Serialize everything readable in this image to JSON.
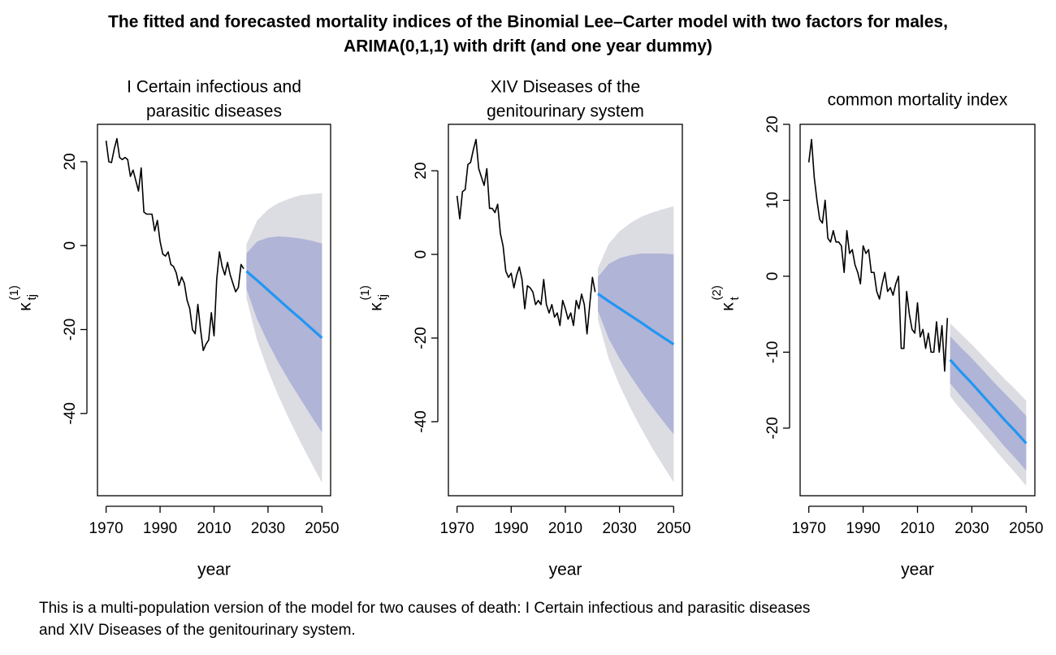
{
  "title": [
    "The fitted and forecasted mortality indices of the Binomial Lee–Carter model with two factors for males,",
    "ARIMA(0,1,1) with drift (and one year dummy)"
  ],
  "caption": [
    "This is a multi-population version of the model for two causes of death: I Certain infectious and parasitic diseases",
    "and XIV Diseases of the genitourinary system."
  ],
  "chart_data": [
    {
      "type": "line",
      "title": [
        "I Certain infectious and",
        "parasitic diseases"
      ],
      "xlabel": "year",
      "ylabel": {
        "symbol": "κ",
        "subscript": "tj",
        "superscript": "(1)"
      },
      "xlim": [
        1966.8,
        2053.2
      ],
      "xticks": [
        1970,
        1990,
        2010,
        2030,
        2050
      ],
      "ylim": [
        -59.6,
        28.9
      ],
      "yticks": [
        -40,
        -20,
        0,
        20
      ],
      "bands": [
        {
          "color": "#dcdce3",
          "x": [
            2022,
            2026,
            2030,
            2034,
            2038,
            2042,
            2046,
            2050
          ],
          "lower": [
            -12.5,
            -22.6,
            -29.8,
            -36.0,
            -41.6,
            -46.8,
            -51.7,
            -56.5
          ],
          "upper": [
            0.3,
            6.0,
            8.6,
            10.2,
            11.2,
            12.0,
            12.3,
            12.5
          ]
        },
        {
          "color": "#b0b4d6",
          "x": [
            2022,
            2026,
            2030,
            2034,
            2038,
            2042,
            2046,
            2050
          ],
          "lower": [
            -10.3,
            -17.6,
            -23.1,
            -28.0,
            -32.4,
            -36.5,
            -40.6,
            -44.5
          ],
          "upper": [
            -1.9,
            1.0,
            1.9,
            2.2,
            2.0,
            1.7,
            1.2,
            0.5
          ]
        }
      ],
      "series": [
        {
          "color": "#000000",
          "x": [
            1970,
            1971,
            1972,
            1973,
            1974,
            1975,
            1976,
            1977,
            1978,
            1979,
            1980,
            1981,
            1982,
            1983,
            1984,
            1985,
            1986,
            1987,
            1988,
            1989,
            1990,
            1991,
            1992,
            1993,
            1994,
            1995,
            1996,
            1997,
            1998,
            1999,
            2000,
            2001,
            2002,
            2003,
            2004,
            2005,
            2006,
            2007,
            2008,
            2009,
            2010,
            2011,
            2012,
            2013,
            2014,
            2015,
            2016,
            2017,
            2018,
            2019,
            2020,
            2021
          ],
          "values": [
            25,
            20,
            19.8,
            23,
            25.5,
            21,
            20.5,
            21,
            20.5,
            16.5,
            18,
            15.5,
            13,
            18.5,
            8,
            7.5,
            7.5,
            7.5,
            3.5,
            6,
            1,
            -2,
            -2.5,
            -1.5,
            -4.5,
            -5,
            -6.5,
            -9.5,
            -7.5,
            -9,
            -13,
            -15,
            -20,
            -21,
            -14,
            -20,
            -25,
            -23.5,
            -22.5,
            -16,
            -21.5,
            -8,
            -1.5,
            -5,
            -7,
            -4,
            -7,
            -9,
            -11,
            -10,
            -4.5,
            -5.5
          ]
        },
        {
          "color": "#2196f3",
          "x": [
            2022,
            2026,
            2030,
            2034,
            2038,
            2042,
            2046,
            2050
          ],
          "values": [
            -6.1,
            -8.3,
            -10.6,
            -12.9,
            -15.2,
            -17.4,
            -19.7,
            -22.0
          ]
        }
      ]
    },
    {
      "type": "line",
      "title": [
        "XIV Diseases of the",
        "genitourinary system"
      ],
      "xlabel": "year",
      "ylabel": {
        "symbol": "κ",
        "subscript": "tj",
        "superscript": "(1)"
      },
      "xlim": [
        1966.8,
        2053.2
      ],
      "xticks": [
        1970,
        1990,
        2010,
        2030,
        2050
      ],
      "ylim": [
        -57.7,
        31.1
      ],
      "yticks": [
        -40,
        -20,
        0,
        20
      ],
      "bands": [
        {
          "color": "#dcdce3",
          "x": [
            2022,
            2026,
            2030,
            2034,
            2038,
            2042,
            2046,
            2050
          ],
          "lower": [
            -15.5,
            -24.9,
            -31.3,
            -36.7,
            -41.6,
            -46.2,
            -50.4,
            -54.5
          ],
          "upper": [
            -3.3,
            2.5,
            5.5,
            7.5,
            9.0,
            10.0,
            10.8,
            11.5
          ]
        },
        {
          "color": "#b0b4d6",
          "x": [
            2022,
            2026,
            2030,
            2034,
            2038,
            2042,
            2046,
            2050
          ],
          "lower": [
            -13.4,
            -20.1,
            -24.9,
            -29.0,
            -32.8,
            -36.4,
            -39.8,
            -43.0
          ],
          "upper": [
            -5.4,
            -2.3,
            -0.9,
            -0.2,
            0.2,
            0.2,
            0.2,
            0
          ]
        }
      ],
      "series": [
        {
          "color": "#000000",
          "x": [
            1970,
            1971,
            1972,
            1973,
            1974,
            1975,
            1976,
            1977,
            1978,
            1979,
            1980,
            1981,
            1982,
            1983,
            1984,
            1985,
            1986,
            1987,
            1988,
            1989,
            1990,
            1991,
            1992,
            1993,
            1994,
            1995,
            1996,
            1997,
            1998,
            1999,
            2000,
            2001,
            2002,
            2003,
            2004,
            2005,
            2006,
            2007,
            2008,
            2009,
            2010,
            2011,
            2012,
            2013,
            2014,
            2015,
            2016,
            2017,
            2018,
            2019,
            2020,
            2021
          ],
          "values": [
            14,
            8.5,
            15,
            15.5,
            21.5,
            22,
            25,
            27.5,
            20.5,
            18.5,
            16.5,
            20.5,
            11,
            11,
            10,
            12,
            5,
            2,
            -4,
            -5.5,
            -4.5,
            -8,
            -5,
            -3,
            -6,
            -13,
            -7.5,
            -8,
            -9,
            -12,
            -11,
            -12,
            -6,
            -12,
            -14,
            -12,
            -15,
            -14,
            -17,
            -11,
            -13,
            -15.5,
            -14,
            -17,
            -11,
            -13,
            -9.5,
            -12,
            -19,
            -12,
            -5.5,
            -9
          ]
        },
        {
          "color": "#2196f3",
          "x": [
            2022,
            2026,
            2030,
            2034,
            2038,
            2042,
            2046,
            2050
          ],
          "values": [
            -9.4,
            -11.2,
            -12.9,
            -14.6,
            -16.3,
            -18.1,
            -19.8,
            -21.5
          ]
        }
      ]
    },
    {
      "type": "line",
      "title": [
        "common mortality index"
      ],
      "xlabel": "year",
      "ylabel": {
        "symbol": "κ",
        "subscript": "t",
        "superscript": "(2)"
      },
      "xlim": [
        1966.8,
        2053.2
      ],
      "xticks": [
        1970,
        1990,
        2010,
        2030,
        2050
      ],
      "ylim": [
        -28.9,
        20.0
      ],
      "yticks": [
        -20,
        -10,
        0,
        10,
        20
      ],
      "bands": [
        {
          "color": "#dcdce3",
          "x": [
            2022,
            2026,
            2030,
            2034,
            2038,
            2042,
            2046,
            2050
          ],
          "lower": [
            -15.8,
            -17.6,
            -19.2,
            -20.9,
            -22.6,
            -24.3,
            -25.9,
            -27.6
          ],
          "upper": [
            -6.2,
            -7.6,
            -9.0,
            -10.5,
            -12.0,
            -13.5,
            -14.9,
            -16.4
          ]
        },
        {
          "color": "#b0b4d6",
          "x": [
            2022,
            2026,
            2030,
            2034,
            2038,
            2042,
            2046,
            2050
          ],
          "lower": [
            -14.1,
            -15.8,
            -17.4,
            -19.05,
            -20.7,
            -22.4,
            -23.95,
            -25.6
          ],
          "upper": [
            -7.9,
            -9.4,
            -10.8,
            -12.35,
            -13.9,
            -15.4,
            -16.85,
            -18.4
          ]
        }
      ],
      "series": [
        {
          "color": "#000000",
          "x": [
            1970,
            1971,
            1972,
            1973,
            1974,
            1975,
            1976,
            1977,
            1978,
            1979,
            1980,
            1981,
            1982,
            1983,
            1984,
            1985,
            1986,
            1987,
            1988,
            1989,
            1990,
            1991,
            1992,
            1993,
            1994,
            1995,
            1996,
            1997,
            1998,
            1999,
            2000,
            2001,
            2002,
            2003,
            2004,
            2005,
            2006,
            2007,
            2008,
            2009,
            2010,
            2011,
            2012,
            2013,
            2014,
            2015,
            2016,
            2017,
            2018,
            2019,
            2020,
            2021
          ],
          "values": [
            15,
            18,
            13,
            10,
            7.5,
            7,
            10,
            5,
            4.5,
            6,
            4.5,
            4.5,
            4,
            0.5,
            6,
            3,
            3.5,
            1.5,
            0.5,
            -1,
            4,
            3,
            3.5,
            0.5,
            0.5,
            -2,
            -3,
            -1,
            0.5,
            -2,
            -1.5,
            -2.5,
            -1,
            0,
            -9.5,
            -9.5,
            -2,
            -5,
            -7,
            -7.5,
            -3.5,
            -8,
            -7,
            -9.5,
            -7.5,
            -10,
            -10,
            -6,
            -10,
            -6.5,
            -12.5,
            -5.5
          ]
        },
        {
          "color": "#2196f3",
          "x": [
            2022,
            2026,
            2030,
            2034,
            2038,
            2042,
            2046,
            2050
          ],
          "values": [
            -11.0,
            -12.6,
            -14.1,
            -15.7,
            -17.3,
            -18.9,
            -20.4,
            -22.0
          ]
        }
      ]
    }
  ]
}
